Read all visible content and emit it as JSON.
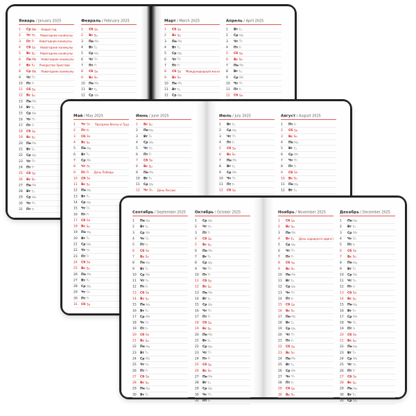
{
  "year": "2025",
  "colors": {
    "holiday_red": "#cf2121",
    "header_rule_red": "#e2574d",
    "row_line_gray": "#d9d9d9",
    "cover_black": "#222222",
    "page_white": "#fdfdfd"
  },
  "weekdays": {
    "ru": [
      "Пн",
      "Вт",
      "Ср",
      "Чт",
      "Пт",
      "Сб",
      "Вс"
    ],
    "en": [
      "Mo",
      "Tu",
      "We",
      "Th",
      "Fr",
      "Sa",
      "Su"
    ]
  },
  "spreads": [
    {
      "id": "jan-apr",
      "months": [
        {
          "ru": "Январь",
          "en_label": "/ January 2025",
          "first_weekday": 2,
          "days_shown": 31,
          "red_days": [
            1,
            2,
            3,
            4,
            5,
            6,
            7,
            8,
            11,
            12,
            18,
            19,
            25,
            26
          ],
          "holidays": {
            "1": "Новый год",
            "2": "Новогодние каникулы",
            "3": "Новогодние каникулы",
            "4": "Новогодние каникулы",
            "5": "Новогодние каникулы",
            "6": "Новогодние каникулы",
            "7": "Рождество Христово",
            "8": "Новогодние каникулы"
          }
        },
        {
          "ru": "Февраль",
          "en_label": "/ February 2025",
          "first_weekday": 5,
          "days_shown": 13,
          "red_days": [
            1,
            2,
            8,
            9
          ],
          "holidays": {}
        },
        {
          "ru": "Март",
          "en_label": "/ March 2025",
          "first_weekday": 5,
          "days_shown": 13,
          "red_days": [
            1,
            2,
            8,
            9
          ],
          "holidays": {
            "8": "Международный женский день"
          }
        },
        {
          "ru": "Апрель",
          "en_label": "/ April 2025",
          "first_weekday": 1,
          "days_shown": 13,
          "red_days": [
            5,
            6,
            12,
            13
          ],
          "holidays": {}
        }
      ]
    },
    {
      "id": "may-aug",
      "months": [
        {
          "ru": "Май",
          "en_label": "/ May 2025",
          "first_weekday": 3,
          "days_shown": 31,
          "red_days": [
            1,
            2,
            3,
            4,
            8,
            9,
            10,
            11,
            17,
            18,
            24,
            25,
            31
          ],
          "holidays": {
            "1": "Праздник Весны и Труда",
            "9": "День Победы"
          }
        },
        {
          "ru": "Июнь",
          "en_label": "/ June 2025",
          "first_weekday": 6,
          "days_shown": 12,
          "red_days": [
            1,
            7,
            8,
            12
          ],
          "holidays": {
            "12": "День России"
          }
        },
        {
          "ru": "Июль",
          "en_label": "/ July 2025",
          "first_weekday": 1,
          "days_shown": 12,
          "red_days": [
            5,
            6,
            12
          ],
          "holidays": {}
        },
        {
          "ru": "Август",
          "en_label": "/ August 2025",
          "first_weekday": 4,
          "days_shown": 12,
          "red_days": [
            2,
            3,
            9,
            10
          ],
          "holidays": {}
        }
      ]
    },
    {
      "id": "sep-dec",
      "months": [
        {
          "ru": "Сентябрь",
          "en_label": "/ September 2025",
          "first_weekday": 0,
          "days_shown": 30,
          "red_days": [
            6,
            7,
            13,
            14,
            20,
            21,
            27,
            28
          ],
          "holidays": {}
        },
        {
          "ru": "Октябрь",
          "en_label": "/ October 2025",
          "first_weekday": 2,
          "days_shown": 31,
          "red_days": [
            4,
            5,
            11,
            12,
            18,
            19,
            25,
            26
          ],
          "holidays": {}
        },
        {
          "ru": "Ноябрь",
          "en_label": "/ November 2025",
          "first_weekday": 5,
          "days_shown": 30,
          "red_days": [
            1,
            2,
            4,
            8,
            9,
            15,
            16,
            22,
            23,
            29,
            30
          ],
          "holidays": {
            "4": "День народного единства"
          }
        },
        {
          "ru": "Декабрь",
          "en_label": "/ December 2025",
          "first_weekday": 0,
          "days_shown": 31,
          "red_days": [
            6,
            7,
            13,
            14,
            20,
            21,
            27,
            28
          ],
          "holidays": {}
        }
      ]
    }
  ]
}
